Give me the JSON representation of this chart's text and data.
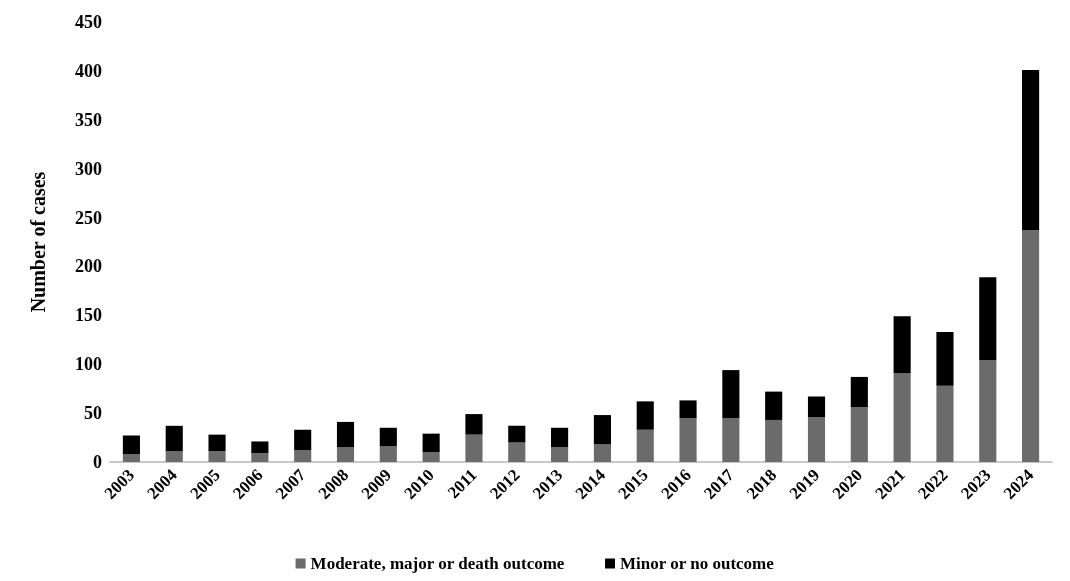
{
  "chart_data": {
    "type": "bar",
    "ylabel": "Number of cases",
    "categories": [
      "2003",
      "2004",
      "2005",
      "2006",
      "2007",
      "2008",
      "2009",
      "2010",
      "2011",
      "2012",
      "2013",
      "2014",
      "2015",
      "2016",
      "2017",
      "2018",
      "2019",
      "2020",
      "2021",
      "2022",
      "2023",
      "2024"
    ],
    "stacked": true,
    "series": [
      {
        "name": "Moderate, major or death outcome",
        "color": "#6b6b6b",
        "values": [
          8,
          11,
          11,
          9,
          12,
          15,
          16,
          10,
          28,
          20,
          15,
          18,
          33,
          45,
          45,
          43,
          46,
          56,
          91,
          78,
          104,
          237
        ]
      },
      {
        "name": "Minor or no outcome",
        "color": "#000000",
        "values": [
          19,
          26,
          17,
          12,
          21,
          26,
          19,
          19,
          21,
          17,
          20,
          30,
          29,
          18,
          49,
          29,
          21,
          31,
          58,
          55,
          85,
          164
        ]
      }
    ],
    "ylim": [
      0,
      450
    ],
    "yticks": [
      0,
      50,
      100,
      150,
      200,
      250,
      300,
      350,
      400,
      450
    ],
    "grid": false,
    "legend": "bottom"
  }
}
